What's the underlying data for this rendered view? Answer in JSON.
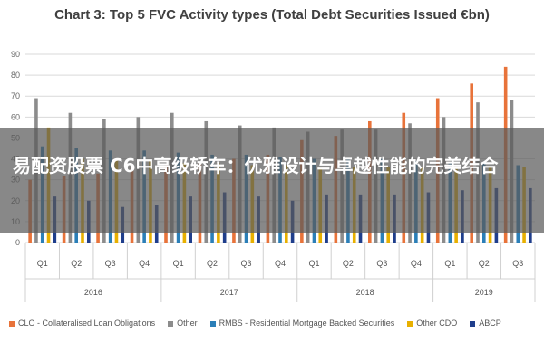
{
  "banner": {
    "text": "易配资股票 C6中高级轿车：优雅设计与卓越性能的完美结合"
  },
  "chart_data": {
    "type": "bar",
    "title": "Chart 3: Top 5 FVC Activity types (Total Debt Securities Issued €bn)",
    "ylim": [
      0,
      90
    ],
    "yticks": [
      0,
      10,
      20,
      30,
      40,
      50,
      60,
      70,
      80,
      90
    ],
    "categories": [
      "Q1",
      "Q2",
      "Q3",
      "Q4",
      "Q1",
      "Q2",
      "Q3",
      "Q4",
      "Q1",
      "Q2",
      "Q3",
      "Q4",
      "Q1",
      "Q2",
      "Q3"
    ],
    "year_groups": [
      {
        "label": "2016",
        "count": 4
      },
      {
        "label": "2017",
        "count": 4
      },
      {
        "label": "2018",
        "count": 4
      },
      {
        "label": "2019",
        "count": 3
      }
    ],
    "grid": true,
    "legend_position": "bottom",
    "series": [
      {
        "name": "CLO - Collateralised Loan Obligations",
        "color": "#e8733a",
        "values": [
          30,
          32,
          33,
          36,
          37,
          38,
          40,
          42,
          49,
          51,
          58,
          62,
          69,
          76,
          84
        ]
      },
      {
        "name": "Other",
        "color": "#8c8c8c",
        "values": [
          69,
          62,
          59,
          60,
          62,
          58,
          56,
          55,
          53,
          54,
          54,
          57,
          60,
          67,
          68
        ]
      },
      {
        "name": "RMBS - Residential Mortgage Backed Securities",
        "color": "#2b7fb8",
        "values": [
          46,
          45,
          44,
          44,
          43,
          42,
          42,
          41,
          40,
          40,
          40,
          39,
          38,
          38,
          37
        ]
      },
      {
        "name": "Other CDO",
        "color": "#e8b000",
        "values": [
          55,
          40,
          40,
          39,
          38,
          38,
          37,
          37,
          36,
          36,
          36,
          36,
          36,
          36,
          36
        ]
      },
      {
        "name": "ABCP",
        "color": "#1f3e8c",
        "values": [
          22,
          20,
          17,
          18,
          22,
          24,
          22,
          20,
          23,
          23,
          23,
          24,
          25,
          26,
          26
        ]
      }
    ]
  }
}
